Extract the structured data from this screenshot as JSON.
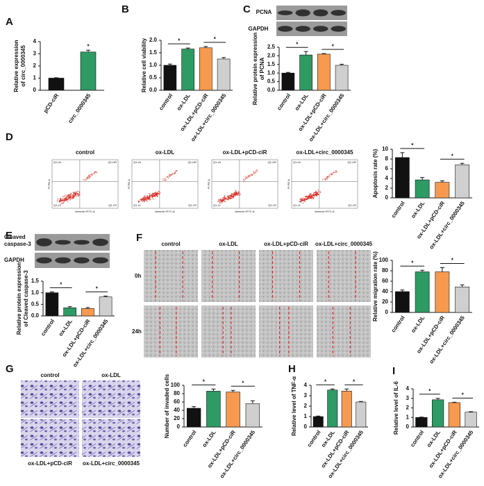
{
  "panels": {
    "C_blot": {
      "protein": "PCNA",
      "control": "GAPDH"
    },
    "D_flow": {
      "titles": [
        "control",
        "ox-LDL",
        "ox-LDL+pCD-ciR",
        "ox-LDL+circ_0000345"
      ],
      "quadrants": [
        "Q1-UL",
        "Q1-UR",
        "Q1-LL",
        "Q1-LR"
      ],
      "xlabel": "Annexin FITC-A",
      "ylabel": "PI PE-A"
    },
    "E_blot": {
      "protein": [
        "Cleaved",
        "caspase-3"
      ],
      "control": "GAPDH"
    },
    "F_wound": {
      "columns": [
        "control",
        "ox-LDL",
        "ox-LDL+pCD-ciR",
        "ox-LDL+circ_0000345"
      ],
      "rows": [
        "0h",
        "24h"
      ]
    },
    "G_transwell": {
      "top": [
        "control",
        "ox-LDL"
      ],
      "bottom": [
        "ox-LDL+pCD-ciR",
        "ox-LDL+circ_0000345"
      ]
    }
  },
  "chart_data": [
    {
      "type": "bar",
      "label": "A",
      "ylabel": [
        "Relative expression",
        "of circ_0000345"
      ],
      "categories": [
        "pCD-ciR",
        "circ_0000345"
      ],
      "values": [
        1.0,
        3.15
      ],
      "errors": [
        0.03,
        0.15
      ],
      "colors": [
        "#111111",
        "#2e9a64"
      ],
      "ylim": [
        0,
        4
      ],
      "yticks": [
        0,
        1,
        2,
        3,
        4
      ],
      "annotations": [
        "*"
      ]
    },
    {
      "type": "bar",
      "label": "B",
      "ylabel": [
        "Relative cell viability"
      ],
      "categories": [
        "control",
        "ox-LDL",
        "ox-LDL+pCD-ciR",
        "ox-LDL+circ_0000345"
      ],
      "values": [
        1.0,
        1.65,
        1.7,
        1.25
      ],
      "errors": [
        0.05,
        0.04,
        0.05,
        0.06
      ],
      "colors": [
        "#111111",
        "#2e9a64",
        "#f79a4f",
        "#cfcfcf"
      ],
      "ylim": [
        0,
        2.0
      ],
      "yticks": [
        {
          "value": 0,
          "label": "0.0"
        },
        {
          "value": 0.5,
          "label": "0.5"
        },
        {
          "value": 1,
          "label": "1.0"
        },
        {
          "value": 1.5,
          "label": "1.5"
        },
        {
          "value": 2,
          "label": "2.0"
        }
      ],
      "annotations": [
        "*",
        "*"
      ]
    },
    {
      "type": "bar",
      "label": "C",
      "ylabel": [
        "Relative protein expression",
        "of PCNA"
      ],
      "categories": [
        "control",
        "ox-LDL",
        "ox-LDL+pCD-ciR",
        "ox-LDL+circ_0000345"
      ],
      "values": [
        1.0,
        2.05,
        2.1,
        1.45
      ],
      "errors": [
        0.04,
        0.2,
        0.03,
        0.06
      ],
      "colors": [
        "#111111",
        "#2e9a64",
        "#f79a4f",
        "#cfcfcf"
      ],
      "ylim": [
        0,
        2.5
      ],
      "yticks": [
        {
          "value": 0,
          "label": "0.0"
        },
        {
          "value": 0.5,
          "label": "0.5"
        },
        {
          "value": 1,
          "label": "1.0"
        },
        {
          "value": 1.5,
          "label": "1.5"
        },
        {
          "value": 2,
          "label": "2.0"
        },
        {
          "value": 2.5,
          "label": "2.5"
        }
      ],
      "annotations": [
        "*",
        "*"
      ]
    },
    {
      "type": "bar",
      "label": "D",
      "ylabel": [
        "Apoptosis rate (%)"
      ],
      "categories": [
        "control",
        "ox-LDL",
        "ox-LDL+pCD-ciR",
        "ox-LDL+circ_0000345"
      ],
      "values": [
        8.3,
        3.7,
        3.2,
        6.8
      ],
      "errors": [
        1.0,
        0.5,
        0.3,
        0.3
      ],
      "colors": [
        "#111111",
        "#2e9a64",
        "#f79a4f",
        "#cfcfcf"
      ],
      "ylim": [
        0,
        10
      ],
      "yticks": [
        0,
        2,
        4,
        6,
        8,
        10
      ],
      "annotations": [
        "*",
        "*"
      ]
    },
    {
      "type": "bar",
      "label": "E",
      "ylabel": [
        "Relative protein expression",
        "of Cleaved caspase-3"
      ],
      "categories": [
        "control",
        "ox-LDL",
        "ox-LDL+pCD-ciR",
        "ox-LDL+circ_0000345"
      ],
      "values": [
        1.0,
        0.35,
        0.32,
        0.82
      ],
      "errors": [
        0.04,
        0.05,
        0.04,
        0.04
      ],
      "colors": [
        "#111111",
        "#2e9a64",
        "#f79a4f",
        "#cfcfcf"
      ],
      "ylim": [
        0,
        1.5
      ],
      "yticks": [
        {
          "value": 0,
          "label": "0.0"
        },
        {
          "value": 0.5,
          "label": "0.5"
        },
        {
          "value": 1,
          "label": "1.0"
        },
        {
          "value": 1.5,
          "label": "1.5"
        }
      ],
      "annotations": [
        "*",
        "*"
      ]
    },
    {
      "type": "bar",
      "label": "F",
      "ylabel": [
        "Relative migration rate (%)"
      ],
      "categories": [
        "control",
        "ox-LDL",
        "ox-LDL+pCD-ciR",
        "ox-LDL+circ_0000345"
      ],
      "values": [
        40,
        78,
        78,
        49
      ],
      "errors": [
        3,
        3,
        8,
        4
      ],
      "colors": [
        "#111111",
        "#2e9a64",
        "#f79a4f",
        "#cfcfcf"
      ],
      "ylim": [
        0,
        100
      ],
      "yticks": [
        0,
        20,
        40,
        60,
        80,
        100
      ],
      "annotations": [
        "*",
        "*"
      ]
    },
    {
      "type": "bar",
      "label": "G",
      "ylabel": [
        "Number of invaded cells"
      ],
      "categories": [
        "control",
        "ox-LDL",
        "ox-LDL+pCD-ciR",
        "ox-LDL+circ_0000345"
      ],
      "values": [
        45,
        86,
        84,
        56
      ],
      "errors": [
        4,
        5,
        4,
        7
      ],
      "colors": [
        "#111111",
        "#2e9a64",
        "#f79a4f",
        "#cfcfcf"
      ],
      "ylim": [
        0,
        100
      ],
      "yticks": [
        0,
        20,
        40,
        60,
        80,
        100
      ],
      "annotations": [
        "*",
        "*"
      ]
    },
    {
      "type": "bar",
      "label": "H",
      "ylabel": [
        "Relative level of TNF-α"
      ],
      "categories": [
        "control",
        "ox-LDL",
        "ox-LDL+pCD-ciR",
        "ox-LDL+circ_0000345"
      ],
      "values": [
        1.0,
        3.55,
        3.45,
        2.4
      ],
      "errors": [
        0.05,
        0.1,
        0.2,
        0.05
      ],
      "colors": [
        "#111111",
        "#2e9a64",
        "#f79a4f",
        "#cfcfcf"
      ],
      "ylim": [
        0,
        4
      ],
      "yticks": [
        0,
        1,
        2,
        3,
        4
      ],
      "annotations": [
        "*",
        "*"
      ]
    },
    {
      "type": "bar",
      "label": "I",
      "ylabel": [
        "Relative level of IL-6"
      ],
      "categories": [
        "control",
        "ox-LDL",
        "ox-LDL+pCD-ciR",
        "ox-LDL+circ_0000345"
      ],
      "values": [
        1.0,
        2.85,
        2.55,
        1.55
      ],
      "errors": [
        0.04,
        0.15,
        0.04,
        0.05
      ],
      "colors": [
        "#111111",
        "#2e9a64",
        "#f79a4f",
        "#cfcfcf"
      ],
      "ylim": [
        0,
        4
      ],
      "yticks": [
        0,
        1,
        2,
        3,
        4
      ],
      "annotations": [
        "*",
        "*"
      ]
    }
  ]
}
